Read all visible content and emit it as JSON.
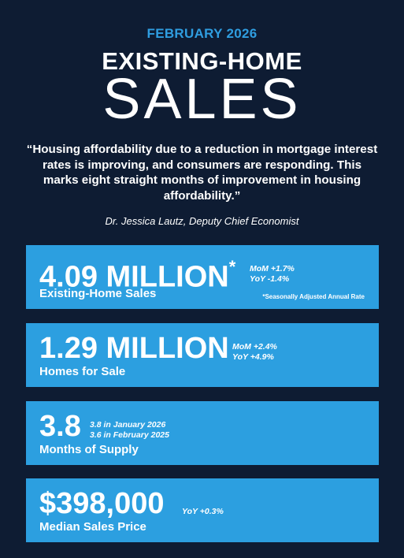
{
  "header": {
    "date": "FEBRUARY 2026",
    "title_top": "EXISTING-HOME",
    "title_main": "SALES"
  },
  "quote": {
    "text": "“Housing affordability due to a reduction in mortgage interest rates is improving, and consumers are responding. This marks eight straight months of improvement in housing affordability.”",
    "attribution": "Dr. Jessica Lautz, Deputy Chief Economist"
  },
  "cards": [
    {
      "value": "4.09 MILLION",
      "asterisk": "*",
      "label": "Existing-Home Sales",
      "stat1": "MoM +1.7%",
      "stat2": "YoY -1.4%",
      "note": "*Seasonally Adjusted Annual Rate"
    },
    {
      "value": "1.29 MILLION",
      "label": "Homes for Sale",
      "stat1": "MoM +2.4%",
      "stat2": "YoY +4.9%"
    },
    {
      "value": "3.8",
      "label": "Months of Supply",
      "stat1": "3.8 in January 2026",
      "stat2": "3.6 in February 2025"
    },
    {
      "value": "$398,000",
      "label": "Median Sales Price",
      "stat1": "YoY +0.3%"
    }
  ],
  "colors": {
    "background": "#0e1c33",
    "accent": "#2f9de0",
    "card": "#2c9fe0"
  }
}
